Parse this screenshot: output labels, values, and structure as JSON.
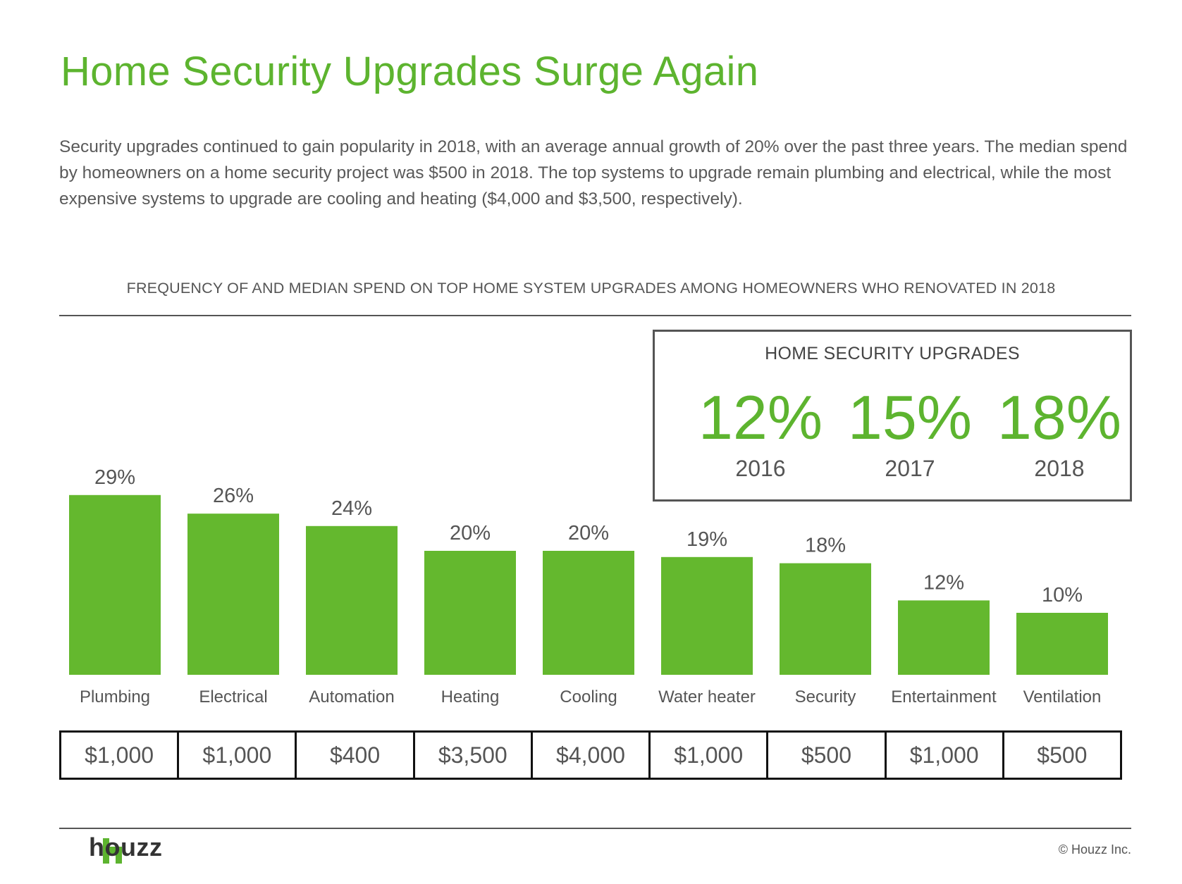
{
  "page": {
    "title": "Home Security Upgrades Surge Again",
    "intro": "Security upgrades continued to gain popularity in 2018, with an average annual growth of 20% over the past three years. The median spend by homeowners on a home security project was $500 in 2018. The top systems to upgrade remain plumbing and electrical, while the most expensive systems to upgrade are cooling and heating ($4,000 and $3,500, respectively)."
  },
  "callout": {
    "title": "HOME SECURITY UPGRADES",
    "stats": [
      {
        "value": "12%",
        "year": "2016"
      },
      {
        "value": "15%",
        "year": "2017"
      },
      {
        "value": "18%",
        "year": "2018"
      }
    ]
  },
  "chart_data": {
    "type": "bar",
    "title": "FREQUENCY OF AND MEDIAN SPEND ON TOP HOME SYSTEM UPGRADES AMONG HOMEOWNERS WHO RENOVATED IN 2018",
    "categories": [
      "Plumbing",
      "Electrical",
      "Automation",
      "Heating",
      "Cooling",
      "Water heater",
      "Security",
      "Entertainment",
      "Ventilation"
    ],
    "values": [
      29,
      26,
      24,
      20,
      20,
      19,
      18,
      12,
      10
    ],
    "value_labels": [
      "29%",
      "26%",
      "24%",
      "20%",
      "20%",
      "19%",
      "18%",
      "12%",
      "10%"
    ],
    "median_spend": [
      "$1,000",
      "$1,000",
      "$400",
      "$3,500",
      "$4,000",
      "$1,000",
      "$500",
      "$1,000",
      "$500"
    ],
    "ylim": [
      0,
      30
    ],
    "grid": false,
    "legend": "none",
    "bar_color": "#64b82e"
  },
  "footer": {
    "brand": "houzz",
    "copyright": "© Houzz Inc."
  },
  "colors": {
    "brand_green": "#5db42f",
    "text": "#555555"
  }
}
